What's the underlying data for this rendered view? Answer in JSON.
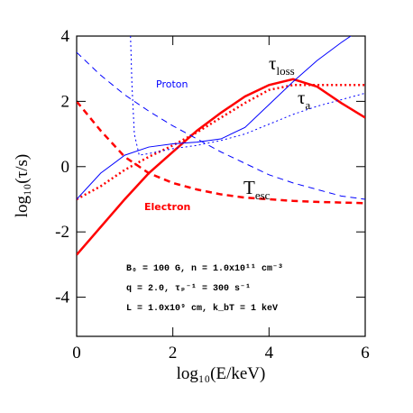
{
  "chart_data": {
    "type": "line",
    "xlabel": "log₁₀(E/keV)",
    "ylabel": "log₁₀(τ/s)",
    "xlim": [
      0,
      6
    ],
    "ylim": [
      -5.2,
      4
    ],
    "xticks": [
      0,
      2,
      4,
      6
    ],
    "yticks": [
      -4,
      -2,
      0,
      2,
      4
    ],
    "x": [
      0,
      0.5,
      1,
      1.5,
      2,
      2.5,
      3,
      3.5,
      4,
      4.5,
      5,
      5.5,
      6
    ],
    "series": [
      {
        "name": "Electron τ_loss",
        "color": "#ff0000",
        "dash": "solid",
        "width": 2.5,
        "values": [
          -2.7,
          -1.85,
          -1.0,
          -0.2,
          0.45,
          1.1,
          1.65,
          2.15,
          2.5,
          2.68,
          2.45,
          1.95,
          1.5
        ]
      },
      {
        "name": "Electron T_esc",
        "color": "#ff0000",
        "dash": "dashed",
        "width": 2.5,
        "values": [
          2.0,
          1.1,
          0.3,
          -0.2,
          -0.5,
          -0.7,
          -0.85,
          -0.95,
          -1.0,
          -1.05,
          -1.08,
          -1.1,
          -1.12
        ]
      },
      {
        "name": "Electron τ_a",
        "color": "#ff0000",
        "dash": "dotted",
        "width": 2.5,
        "values": [
          -1.0,
          -0.6,
          -0.1,
          0.3,
          0.65,
          1.05,
          1.5,
          1.95,
          2.35,
          2.5,
          2.5,
          2.5,
          2.5
        ]
      },
      {
        "name": "Proton τ_loss",
        "color": "#0000ff",
        "dash": "solid",
        "width": 1,
        "values": [
          -1.0,
          -0.2,
          0.35,
          0.6,
          0.7,
          0.75,
          0.85,
          1.2,
          1.9,
          2.6,
          3.25,
          3.8,
          4.3
        ]
      },
      {
        "name": "Proton T_esc",
        "color": "#0000ff",
        "dash": "dashed",
        "width": 1,
        "values": [
          3.5,
          2.8,
          2.2,
          1.7,
          1.25,
          0.85,
          0.45,
          0.1,
          -0.25,
          -0.5,
          -0.7,
          -0.9,
          -1.0
        ]
      },
      {
        "name": "Proton τ_a",
        "color": "#0000ff",
        "dash": "dotted",
        "width": 1,
        "x": [
          1.12,
          1.15,
          1.2,
          1.3,
          1.5,
          2,
          2.5,
          3,
          3.5,
          4,
          4.5,
          5,
          5.5,
          6
        ],
        "values": [
          4,
          2.5,
          1,
          0.35,
          0.4,
          0.55,
          0.65,
          0.8,
          1.0,
          1.3,
          1.6,
          1.85,
          2.05,
          2.25
        ]
      }
    ],
    "annotations": [
      {
        "text": "Proton",
        "color": "#0000ff"
      },
      {
        "text": "Electron",
        "color": "#ff0000"
      },
      {
        "text": "τ",
        "sub": "loss",
        "color": "#000000"
      },
      {
        "text": "τ",
        "sub": "a",
        "color": "#000000"
      },
      {
        "text": "T",
        "sub": "esc",
        "color": "#000000"
      },
      {
        "text": "B₀ = 100 G, n = 1.0x10¹¹ cm⁻³",
        "color": "#000000"
      },
      {
        "text": "q = 2.0, τₚ⁻¹ = 300 s⁻¹",
        "color": "#000000"
      },
      {
        "text": "L = 1.0x10⁹ cm, k_bT = 1 keV",
        "color": "#000000"
      }
    ]
  }
}
